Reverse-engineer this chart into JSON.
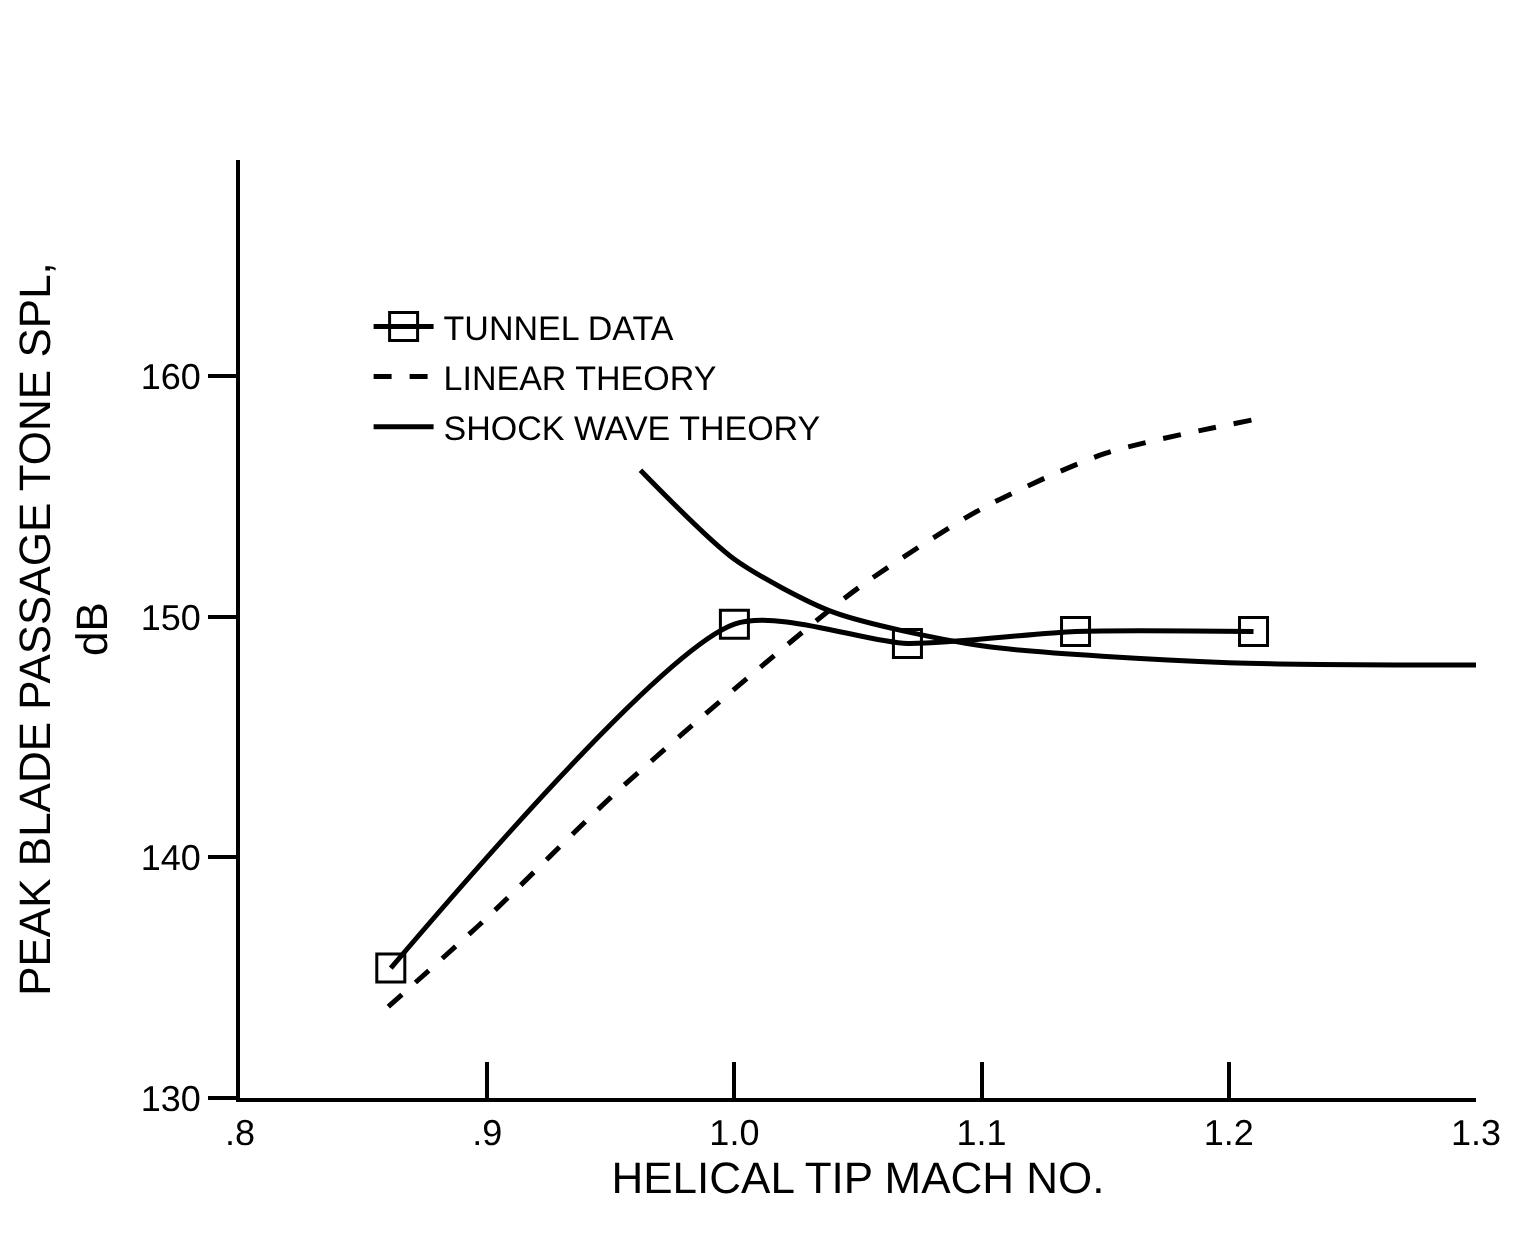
{
  "chart_data": {
    "type": "line",
    "xlabel": "HELICAL TIP MACH NO.",
    "ylabel": "PEAK BLADE PASSAGE TONE SPL,\ndB",
    "xlim": [
      0.8,
      1.3
    ],
    "xticks": [
      {
        "value": 0.8,
        "label": ".8"
      },
      {
        "value": 0.9,
        "label": ".9"
      },
      {
        "value": 1.0,
        "label": "1.0"
      },
      {
        "value": 1.1,
        "label": "1.1"
      },
      {
        "value": 1.2,
        "label": "1.2"
      },
      {
        "value": 1.3,
        "label": "1.3"
      }
    ],
    "ylim": [
      130,
      169
    ],
    "yticks": [
      130,
      140,
      150,
      160
    ],
    "legend": "top left",
    "series": [
      {
        "name": "TUNNEL DATA",
        "color": "#000000",
        "marker": "square",
        "line_style": "solid",
        "x": [
          0.861,
          1.0,
          1.07,
          1.138,
          1.21
        ],
        "values": [
          135.4,
          149.7,
          148.9,
          149.4,
          149.4
        ]
      },
      {
        "name": "LINEAR THEORY",
        "color": "#000000",
        "marker": "none",
        "line_style": "dashed",
        "x": [
          0.86,
          0.9,
          0.95,
          1.0,
          1.05,
          1.1,
          1.15,
          1.21
        ],
        "values": [
          133.8,
          137.5,
          142.5,
          147.0,
          151.2,
          154.5,
          156.8,
          158.2
        ]
      },
      {
        "name": "SHOCK WAVE THEORY",
        "color": "#000000",
        "marker": "none",
        "line_style": "solid",
        "x": [
          0.962,
          1.0,
          1.04,
          1.1,
          1.2,
          1.3
        ],
        "values": [
          156.1,
          152.4,
          150.2,
          148.8,
          148.1,
          148.0
        ]
      }
    ]
  }
}
